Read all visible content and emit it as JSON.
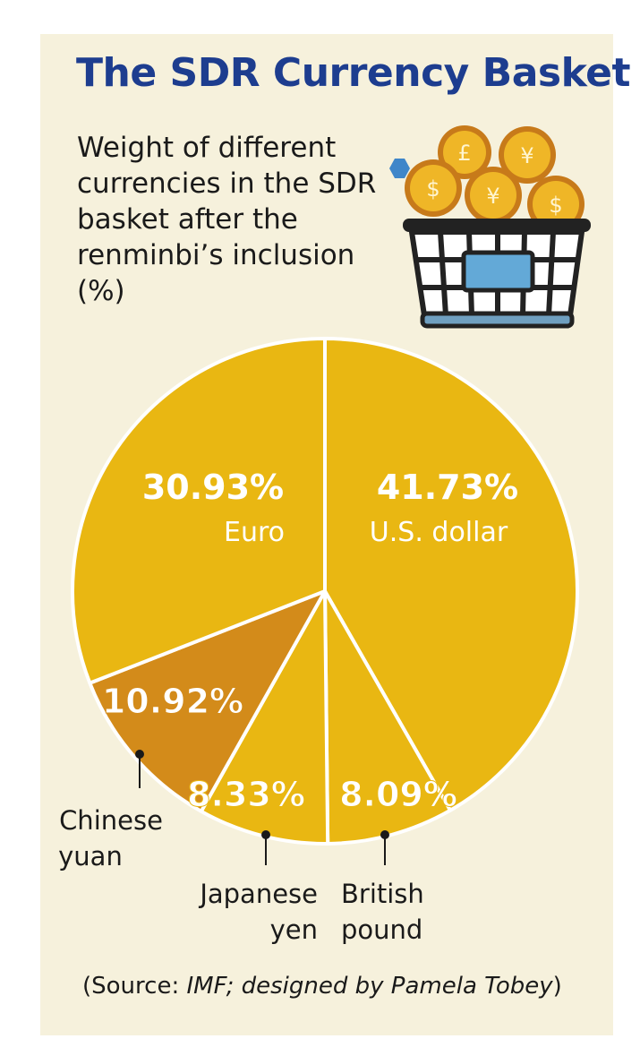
{
  "chart_data": {
    "type": "pie",
    "title": "The SDR Currency Basket",
    "subtitle": "Weight of different currencies in the SDR basket after the renminbi’s inclusion (%)",
    "unit": "%",
    "slices": [
      {
        "label": "U.S. dollar",
        "value": 41.73,
        "value_label": "41.73%",
        "color": "#e9b712"
      },
      {
        "label": "British pound",
        "value": 8.09,
        "value_label": "8.09%",
        "color": "#e9b712"
      },
      {
        "label": "Japanese yen",
        "value": 8.33,
        "value_label": "8.33%",
        "color": "#e9b712"
      },
      {
        "label": "Chinese yuan",
        "value": 10.92,
        "value_label": "10.92%",
        "color": "#d38b1a"
      },
      {
        "label": "Euro",
        "value": 30.93,
        "value_label": "30.93%",
        "color": "#e9b712"
      }
    ],
    "start": "12 o'clock",
    "direction": "clockwise",
    "legend": "none"
  },
  "source": {
    "prefix": "(Source: ",
    "italic": "IMF; designed by Pamela Tobey",
    "suffix": ")"
  },
  "colors": {
    "title": "#1d3d8f",
    "background": "#f6f1dc",
    "slice_border": "#ffffff"
  },
  "illustration": "basket-of-coins-icon"
}
